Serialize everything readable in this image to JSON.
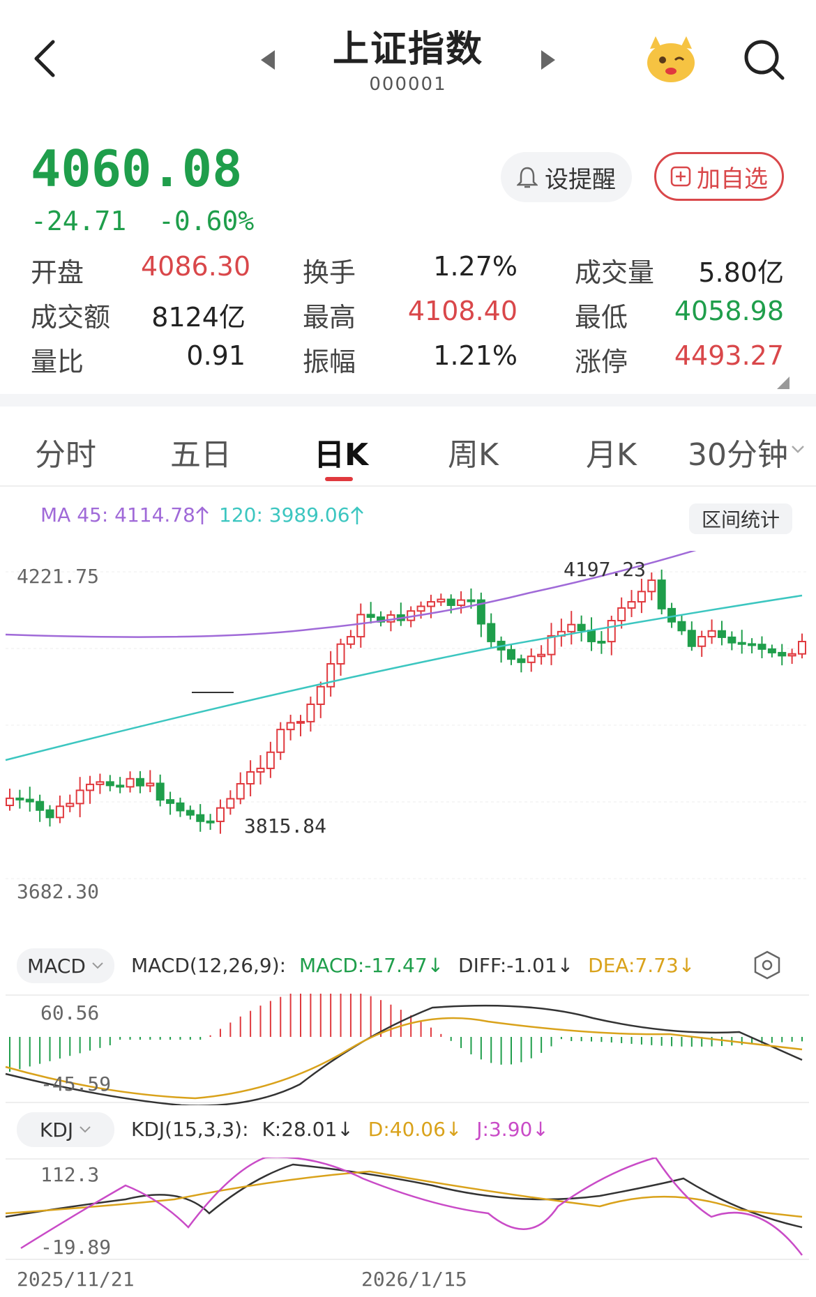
{
  "header": {
    "title": "上证指数",
    "code": "000001"
  },
  "quote": {
    "price": "4060.08",
    "change": "-24.71",
    "change_pct": "-0.60%",
    "remind_label": "设提醒",
    "add_label": "加自选"
  },
  "stats": [
    [
      {
        "label": "开盘",
        "value": "4086.30",
        "color": "#d9474a"
      },
      {
        "label": "换手",
        "value": "1.27%",
        "color": "#222"
      },
      {
        "label": "成交量",
        "value": "5.80亿",
        "color": "#222"
      }
    ],
    [
      {
        "label": "成交额",
        "value": "8124亿",
        "color": "#222"
      },
      {
        "label": "最高",
        "value": "4108.40",
        "color": "#d9474a"
      },
      {
        "label": "最低",
        "value": "4058.98",
        "color": "#1f9e4b"
      }
    ],
    [
      {
        "label": "量比",
        "value": "0.91",
        "color": "#222"
      },
      {
        "label": "振幅",
        "value": "1.21%",
        "color": "#222"
      },
      {
        "label": "涨停",
        "value": "4493.27",
        "color": "#d9474a"
      }
    ]
  ],
  "tabs": [
    "分时",
    "五日",
    "日K",
    "周K",
    "月K",
    "30分钟"
  ],
  "ma": {
    "ma45": "MA 45: 4114.78",
    "ma120": "120: 3989.06",
    "stat_btn": "区间统计"
  },
  "kline": {
    "y_high_label": "4221.75",
    "y_low_label": "3682.30",
    "max_label": "4197.23",
    "min_label": "3815.84"
  },
  "macd": {
    "selector": "MACD",
    "params": "MACD(12,26,9):",
    "macd": "MACD:-17.47",
    "diff": "DIFF:-1.01",
    "dea": "DEA:7.73",
    "y_top": "60.56",
    "y_bottom": "-45.59"
  },
  "kdj": {
    "selector": "KDJ",
    "params": "KDJ(15,3,3):",
    "k": "K:28.01",
    "d": "D:40.06",
    "j": "J:3.90",
    "y_top": "112.3",
    "y_bottom": "-19.89"
  },
  "xaxis": {
    "start": "2025/11/21",
    "mid": "2026/1/15"
  },
  "colors": {
    "up": "#e0393e",
    "down": "#1f9e4b",
    "ma45": "#a06ad8",
    "ma120": "#3cc6c0",
    "dea": "#d9a21b",
    "kdj_j": "#c94bc7"
  }
}
